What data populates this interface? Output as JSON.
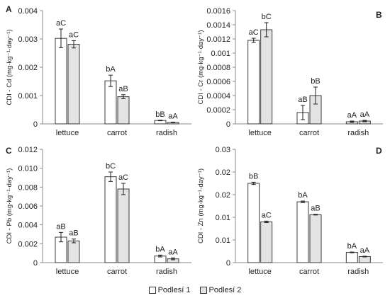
{
  "legend": {
    "s1": "Podlesí 1",
    "s2": "Podlesí 2"
  },
  "colors": {
    "s1": "#ffffff",
    "s2": "#e3e3e3",
    "stroke": "#3a3a3a",
    "axis": "#8a8a8a"
  },
  "chart_data": [
    {
      "type": "bar",
      "panel": "A",
      "ylabel": "CDI - Cd (mg·kg⁻¹·day⁻¹)",
      "categories": [
        "lettuce",
        "carrot",
        "radish"
      ],
      "ylim": [
        0,
        0.004
      ],
      "yticks": [
        "0",
        "0.001",
        "0.002",
        "0.003",
        "0.004"
      ],
      "series": [
        {
          "name": "Podlesí 1",
          "values": [
            0.00302,
            0.00152,
            0.00012
          ],
          "errors": [
            0.00033,
            0.0002,
            1e-05
          ],
          "labels": [
            "aC",
            "bA",
            "bB"
          ]
        },
        {
          "name": "Podlesí 2",
          "values": [
            0.00281,
            0.00096,
            5e-05
          ],
          "errors": [
            0.00013,
            7e-05,
            1e-05
          ],
          "labels": [
            "aC",
            "aB",
            "aA"
          ]
        }
      ]
    },
    {
      "type": "bar",
      "panel": "B",
      "ylabel": "CDI - Cr (mg·kg⁻¹·day⁻¹)",
      "categories": [
        "lettuce",
        "carrot",
        "radish"
      ],
      "ylim": [
        0,
        0.0016
      ],
      "yticks": [
        "0",
        "0.0002",
        "0.0004",
        "0.0006",
        "0.0008",
        "0.001",
        "0.0012",
        "0.0014",
        "0.0016"
      ],
      "series": [
        {
          "name": "Podlesí 1",
          "values": [
            0.00118,
            0.00016,
            3e-05
          ],
          "errors": [
            3e-05,
            0.0001,
            1e-05
          ],
          "labels": [
            "aC",
            "aB",
            "aA"
          ]
        },
        {
          "name": "Podlesí 2",
          "values": [
            0.00133,
            0.0004,
            4e-05
          ],
          "errors": [
            0.0001,
            0.00012,
            1e-05
          ],
          "labels": [
            "bC",
            "bB",
            "aA"
          ]
        }
      ]
    },
    {
      "type": "bar",
      "panel": "C",
      "ylabel": "CDI - Pb (mg·kg⁻¹·day⁻¹)",
      "categories": [
        "lettuce",
        "carrot",
        "radish"
      ],
      "ylim": [
        0,
        0.012
      ],
      "yticks": [
        "0",
        "0.002",
        "0.004",
        "0.006",
        "0.008",
        "0.010",
        "0.012"
      ],
      "series": [
        {
          "name": "Podlesí 1",
          "values": [
            0.0027,
            0.0091,
            0.0007
          ],
          "errors": [
            0.0005,
            0.0005,
            0.0001
          ],
          "labels": [
            "aB",
            "bC",
            "bA"
          ]
        },
        {
          "name": "Podlesí 2",
          "values": [
            0.0023,
            0.0078,
            0.0004
          ],
          "errors": [
            0.0002,
            0.0006,
            0.0001
          ],
          "labels": [
            "aB",
            "aC",
            "aA"
          ]
        }
      ]
    },
    {
      "type": "bar",
      "panel": "D",
      "ylabel": "CDI - Zn (mg·kg⁻¹·day⁻¹)",
      "categories": [
        "lettuce",
        "carrot",
        "radish"
      ],
      "ylim": [
        0,
        0.03
      ],
      "yticks": [
        "0",
        "0.01",
        "0.01",
        "0.02",
        "0.02",
        "0.03"
      ],
      "series": [
        {
          "name": "Podlesí 1",
          "values": [
            0.021,
            0.0161,
            0.0027
          ],
          "errors": [
            0.0003,
            0.0002,
            0.0001
          ],
          "labels": [
            "bB",
            "bA",
            "bA"
          ]
        },
        {
          "name": "Podlesí 2",
          "values": [
            0.0108,
            0.0127,
            0.0016
          ],
          "errors": [
            0.0002,
            0.0001,
            0.0001
          ],
          "labels": [
            "aC",
            "aB",
            "aA"
          ]
        }
      ]
    }
  ]
}
